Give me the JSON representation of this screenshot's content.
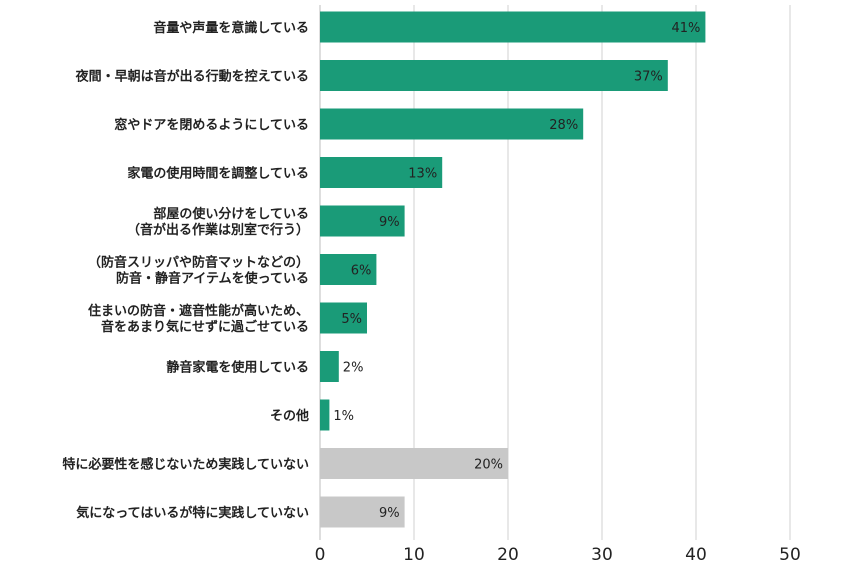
{
  "chart_data": {
    "type": "bar",
    "orientation": "horizontal",
    "categories": [
      [
        "音量や声量を意識している"
      ],
      [
        "夜間・早朝は音が出る行動を控えている"
      ],
      [
        "窓やドアを閉めるようにしている"
      ],
      [
        "家電の使用時間を調整している"
      ],
      [
        "部屋の使い分けをしている",
        "（音が出る作業は別室で行う）"
      ],
      [
        "（防音スリッパや防音マットなどの）",
        "防音・静音アイテムを使っている"
      ],
      [
        "住まいの防音・遮音性能が高いため、",
        "音をあまり気にせずに過ごせている"
      ],
      [
        "静音家電を使用している"
      ],
      [
        "その他"
      ],
      [
        "特に必要性を感じないため実践していない"
      ],
      [
        "気になってはいるが特に実践していない"
      ]
    ],
    "values": [
      41,
      37,
      28,
      13,
      9,
      6,
      5,
      2,
      1,
      20,
      9
    ],
    "value_labels": [
      "41%",
      "37%",
      "28%",
      "13%",
      "9%",
      "6%",
      "5%",
      "2%",
      "1%",
      "20%",
      "9%"
    ],
    "bar_colors": [
      "#1a9b78",
      "#1a9b78",
      "#1a9b78",
      "#1a9b78",
      "#1a9b78",
      "#1a9b78",
      "#1a9b78",
      "#1a9b78",
      "#1a9b78",
      "#c8c8c8",
      "#c8c8c8"
    ],
    "label_inside": [
      true,
      true,
      true,
      true,
      true,
      true,
      true,
      false,
      false,
      true,
      true
    ],
    "xlim": [
      0,
      50
    ],
    "xticks": [
      0,
      10,
      20,
      30,
      40,
      50
    ],
    "xtick_labels": [
      "0",
      "10",
      "20",
      "30",
      "40",
      "50"
    ],
    "grid": true,
    "gridline_color": "#d0d0d0",
    "title": "",
    "xlabel": "",
    "ylabel": ""
  }
}
